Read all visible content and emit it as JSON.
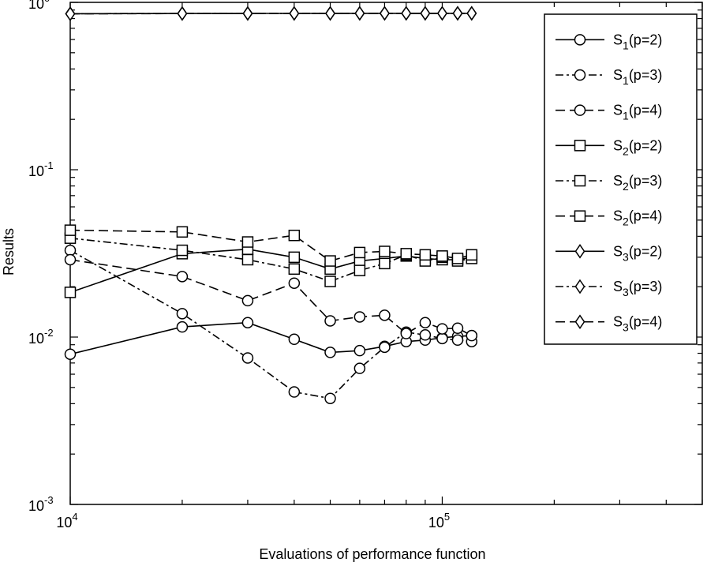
{
  "chart_data": {
    "type": "line",
    "title": "",
    "xlabel": "Evaluations of performance function",
    "ylabel": "Results",
    "xscale": "log",
    "yscale": "log",
    "xlim": [
      10000,
      500000
    ],
    "ylim": [
      0.001,
      1
    ],
    "grid": false,
    "legend_position": "top-right",
    "x_ticks": [
      {
        "value": 10000,
        "base": "10",
        "exp": "4"
      },
      {
        "value": 100000,
        "base": "10",
        "exp": "5"
      }
    ],
    "y_ticks": [
      {
        "value": 1,
        "base": "10",
        "exp": "0"
      },
      {
        "value": 0.1,
        "base": "10",
        "exp": "-1"
      },
      {
        "value": 0.01,
        "base": "10",
        "exp": "-2"
      },
      {
        "value": 0.001,
        "base": "10",
        "exp": "-3"
      }
    ],
    "x": [
      10000,
      20000,
      30000,
      40000,
      50000,
      60000,
      70000,
      80000,
      90000,
      100000,
      110000,
      120000
    ],
    "series": [
      {
        "name": "S1(p=2)",
        "sym": "S",
        "sub": "1",
        "param": "(p=2)",
        "marker": "circle",
        "dash": "solid",
        "values": [
          0.0079,
          0.0115,
          0.0122,
          0.0097,
          0.0081,
          0.0083,
          0.0088,
          0.0094,
          0.0096,
          0.0099,
          0.0101,
          0.0102
        ]
      },
      {
        "name": "S1(p=3)",
        "sym": "S",
        "sub": "1",
        "param": "(p=3)",
        "marker": "circle",
        "dash": "dashdot",
        "values": [
          0.033,
          0.0138,
          0.0075,
          0.0047,
          0.0043,
          0.0065,
          0.0087,
          0.0107,
          0.0103,
          0.0098,
          0.0096,
          0.0094
        ]
      },
      {
        "name": "S1(p=4)",
        "sym": "S",
        "sub": "1",
        "param": "(p=4)",
        "marker": "circle",
        "dash": "dashed",
        "values": [
          0.029,
          0.023,
          0.0165,
          0.021,
          0.0125,
          0.0132,
          0.0135,
          0.0105,
          0.0122,
          0.0112,
          0.0113,
          0.0102
        ]
      },
      {
        "name": "S2(p=2)",
        "sym": "S",
        "sub": "2",
        "param": "(p=2)",
        "marker": "square",
        "dash": "solid",
        "values": [
          0.0185,
          0.0315,
          0.0335,
          0.03,
          0.0255,
          0.0285,
          0.0295,
          0.0305,
          0.0295,
          0.029,
          0.029,
          0.03
        ]
      },
      {
        "name": "S2(p=3)",
        "sym": "S",
        "sub": "2",
        "param": "(p=3)",
        "marker": "square",
        "dash": "dashdot",
        "values": [
          0.039,
          0.033,
          0.029,
          0.0255,
          0.0215,
          0.025,
          0.0275,
          0.031,
          0.0285,
          0.03,
          0.0285,
          0.0295
        ]
      },
      {
        "name": "S2(p=4)",
        "sym": "S",
        "sub": "2",
        "param": "(p=4)",
        "marker": "square",
        "dash": "dashed",
        "values": [
          0.0435,
          0.0425,
          0.037,
          0.0405,
          0.0285,
          0.032,
          0.0325,
          0.0315,
          0.031,
          0.0305,
          0.0295,
          0.031
        ]
      },
      {
        "name": "S3(p=2)",
        "sym": "S",
        "sub": "3",
        "param": "(p=2)",
        "marker": "diamond",
        "dash": "solid",
        "values": [
          0.855,
          0.858,
          0.859,
          0.859,
          0.859,
          0.86,
          0.86,
          0.86,
          0.86,
          0.86,
          0.86,
          0.86
        ]
      },
      {
        "name": "S3(p=3)",
        "sym": "S",
        "sub": "3",
        "param": "(p=3)",
        "marker": "diamond",
        "dash": "dashdot",
        "values": [
          0.856,
          0.858,
          0.859,
          0.859,
          0.86,
          0.86,
          0.86,
          0.86,
          0.86,
          0.86,
          0.86,
          0.86
        ]
      },
      {
        "name": "S3(p=4)",
        "sym": "S",
        "sub": "3",
        "param": "(p=4)",
        "marker": "diamond",
        "dash": "dashed",
        "values": [
          0.854,
          0.857,
          0.858,
          0.859,
          0.859,
          0.86,
          0.86,
          0.86,
          0.86,
          0.86,
          0.86,
          0.86
        ]
      }
    ]
  }
}
